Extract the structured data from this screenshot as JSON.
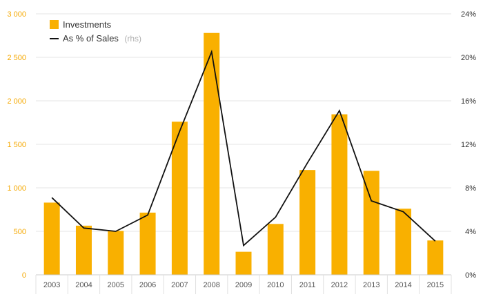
{
  "chart_data": {
    "type": "bar",
    "categories": [
      "2003",
      "2004",
      "2005",
      "2006",
      "2007",
      "2008",
      "2009",
      "2010",
      "2011",
      "2012",
      "2013",
      "2014",
      "2015"
    ],
    "series": [
      {
        "name": "Investments",
        "type": "bar",
        "axis": "left",
        "values": [
          830,
          565,
          505,
          715,
          1760,
          2780,
          265,
          585,
          1205,
          1845,
          1195,
          760,
          395
        ]
      },
      {
        "name": "As % of Sales",
        "name_suffix": "(rhs)",
        "type": "line",
        "axis": "right",
        "values": [
          7.1,
          4.3,
          4.0,
          5.5,
          13.2,
          20.5,
          2.7,
          5.3,
          10.3,
          15.1,
          6.8,
          5.8,
          3.1
        ]
      }
    ],
    "y_left": {
      "ylim": [
        0,
        3000
      ],
      "ticks": [
        0,
        500,
        1000,
        1500,
        2000,
        2500,
        3000
      ],
      "tick_labels": [
        "0",
        "500",
        "1 000",
        "1 500",
        "2 000",
        "2 500",
        "3 000"
      ]
    },
    "y_right": {
      "ylim": [
        0,
        24
      ],
      "ticks": [
        0,
        4,
        8,
        12,
        16,
        20,
        24
      ],
      "tick_labels": [
        "0%",
        "4%",
        "8%",
        "12%",
        "16%",
        "20%",
        "24%"
      ]
    },
    "grid": true,
    "legend_position": "top-left",
    "colors": {
      "bar": "#f9b000",
      "line": "#111111",
      "left_ticks": "#f5a800",
      "grid": "#e6e6e6"
    }
  }
}
